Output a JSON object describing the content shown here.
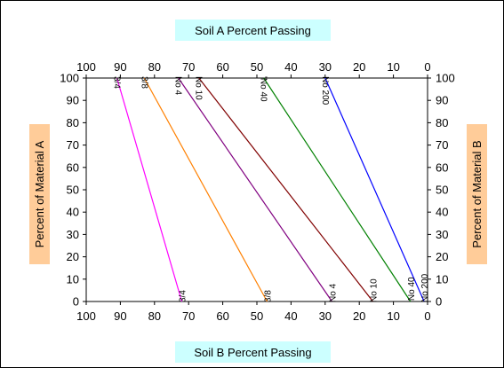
{
  "chart_data": {
    "type": "line",
    "top_axis_label": "Soil A Percent Passing",
    "bottom_axis_label": "Soil B Percent Passing",
    "left_axis_label": "Percent of Material A",
    "right_axis_label": "Percent of Material B",
    "top_axis_ticks": [
      "100",
      "90",
      "80",
      "70",
      "60",
      "50",
      "40",
      "30",
      "20",
      "10",
      "0"
    ],
    "bottom_axis_ticks": [
      "100",
      "90",
      "80",
      "70",
      "60",
      "50",
      "40",
      "30",
      "20",
      "10",
      "0"
    ],
    "left_axis_ticks": [
      "0",
      "10",
      "20",
      "30",
      "40",
      "50",
      "60",
      "70",
      "80",
      "90",
      "100"
    ],
    "right_axis_ticks": [
      "100",
      "90",
      "80",
      "70",
      "60",
      "50",
      "40",
      "30",
      "20",
      "10",
      "0"
    ],
    "x_range": [
      100,
      0
    ],
    "y_range": [
      0,
      100
    ],
    "series": [
      {
        "name": "3/4",
        "color": "#ff00ff",
        "soil_a": 91,
        "soil_b": 72
      },
      {
        "name": "3/8",
        "color": "#ff8000",
        "soil_a": 83,
        "soil_b": 47
      },
      {
        "name": "No 4",
        "color": "#800080",
        "soil_a": 73,
        "soil_b": 28
      },
      {
        "name": "No 10",
        "color": "#800000",
        "soil_a": 67,
        "soil_b": 16
      },
      {
        "name": "No 40",
        "color": "#008000",
        "soil_a": 48,
        "soil_b": 5
      },
      {
        "name": "No 200",
        "color": "#0000ff",
        "soil_a": 30,
        "soil_b": 1
      }
    ],
    "label_texts": {
      "3/4": {
        "top": "3/4",
        "bottom": "3/4"
      },
      "3/8": {
        "top": "3/8",
        "bottom": "3/8"
      },
      "No 4": {
        "top": "No 4",
        "bottom": "No 4"
      },
      "No 10": {
        "top": "No 10",
        "bottom": "No 10"
      },
      "No 40": {
        "top": "'No 40",
        "bottom": "'No 40"
      },
      "No 200": {
        "top": "No 200",
        "bottom": "No 200"
      }
    },
    "colors": {
      "title_box": "#ccffff",
      "axis_title_box": "#ffcc99",
      "frame": "#000000"
    }
  }
}
